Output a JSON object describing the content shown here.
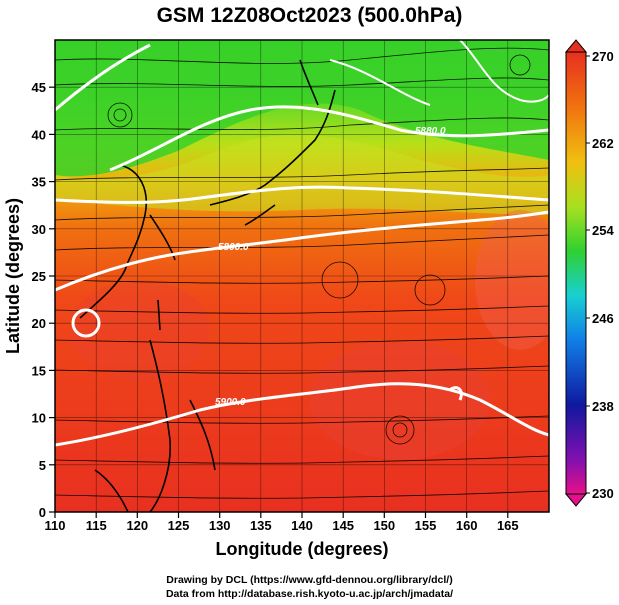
{
  "title": "GSM 12Z08Oct2023 (500.0hPa)",
  "x_axis": {
    "label": "Longitude (degrees)",
    "range": [
      110,
      170
    ],
    "ticks": [
      "110",
      "115",
      "120",
      "125",
      "130",
      "135",
      "140",
      "145",
      "150",
      "155",
      "160",
      "165"
    ]
  },
  "y_axis": {
    "label": "Latitude  (degrees)",
    "range": [
      0,
      50
    ],
    "ticks": [
      "0",
      "5",
      "10",
      "15",
      "20",
      "25",
      "30",
      "35",
      "40",
      "45"
    ]
  },
  "colorbar": {
    "range": [
      230,
      270
    ],
    "labels": [
      "270",
      "262",
      "254",
      "246",
      "238",
      "230"
    ],
    "colors": [
      "#e8108a",
      "#1018a0",
      "#1080e8",
      "#18d0d0",
      "#30d030",
      "#a8e020",
      "#f0c010",
      "#f07010",
      "#e83020"
    ]
  },
  "contours": [
    {
      "label": "5880.0"
    },
    {
      "label": "5800.0"
    },
    {
      "label": "5900.0"
    }
  ],
  "credits": {
    "line1": "Drawing by DCL (https://www.gfd-dennou.org/library/dcl/)",
    "line2": "Data from http://database.rish.kyoto-u.ac.jp/arch/jmadata/"
  }
}
